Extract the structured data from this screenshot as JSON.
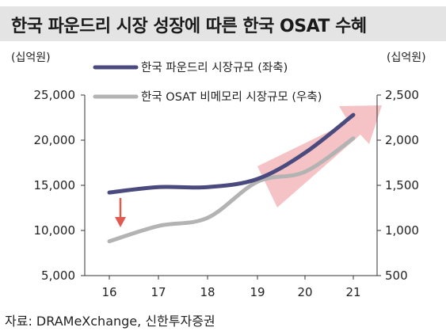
{
  "title": "한국 파운드리 시장 성장에 따른 한국 OSAT 수혜",
  "unit_left": "(십억원)",
  "unit_right": "(십억원)",
  "source": "자료: DRAMeXchange, 신한투자증권",
  "chart_data": {
    "type": "line",
    "title": "한국 파운드리 시장 성장에 따른 한국 OSAT 수혜",
    "categories": [
      "16",
      "17",
      "18",
      "19",
      "20",
      "21"
    ],
    "y_left": {
      "min": 5000,
      "max": 25000,
      "ticks": [
        "5,000",
        "10,000",
        "15,000",
        "20,000",
        "25,000"
      ]
    },
    "y_right": {
      "min": 500,
      "max": 2500,
      "ticks": [
        "500",
        "1,000",
        "1,500",
        "2,000",
        "2,500"
      ]
    },
    "series": [
      {
        "name": "한국 파운드리 시장규모 (좌축)",
        "axis": "left",
        "color": "#4a4a7e",
        "values": [
          14200,
          14800,
          14800,
          15700,
          18600,
          22800
        ]
      },
      {
        "name": "한국 OSAT 비메모리 시장규모 (우축)",
        "axis": "right",
        "color": "#b3b3b3",
        "values": [
          880,
          1050,
          1140,
          1540,
          1650,
          2020
        ]
      }
    ],
    "annotations": {
      "down_arrow_color": "#e05a52",
      "up_arrow_color": "#f3b8bc"
    },
    "grid": false
  }
}
